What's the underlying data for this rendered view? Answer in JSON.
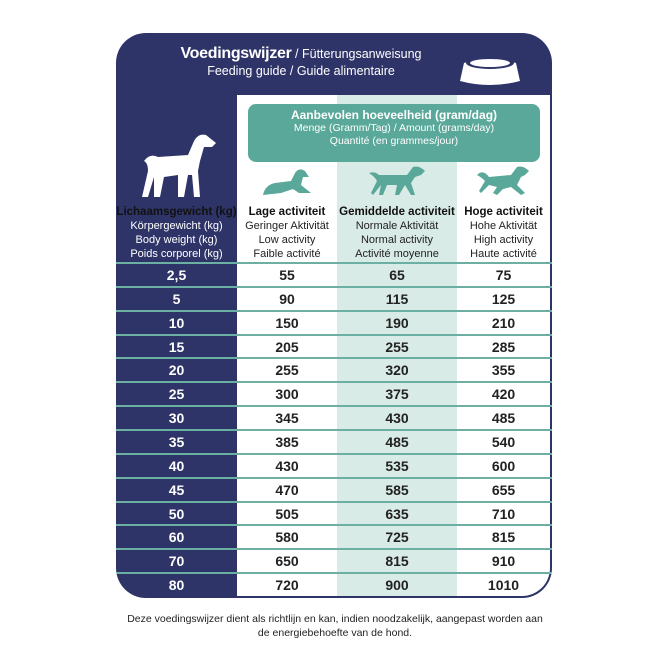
{
  "header": {
    "title_bold": "Voedingswijzer",
    "title_rest": " / Fütterungsanweisung",
    "subtitle": "Feeding guide / Guide alimentaire"
  },
  "amount": {
    "line1": "Aanbevolen hoeveelheid (gram/dag)",
    "line2": "Menge (Gramm/Tag) / Amount (grams/day)",
    "line3": "Quantité (en grammes/jour)"
  },
  "columns": [
    {
      "nl": "Lichaamsgewicht (kg)",
      "de": "Körpergewicht (kg)",
      "en": "Body weight (kg)",
      "fr": "Poids corporel (kg)"
    },
    {
      "nl": "Lage activiteit",
      "de": "Geringer Aktivität",
      "en": "Low activity",
      "fr": "Faible activité"
    },
    {
      "nl": "Gemiddelde activiteit",
      "de": "Normale Aktivität",
      "en": "Normal activity",
      "fr": "Activité moyenne"
    },
    {
      "nl": "Hoge activiteit",
      "de": "Hohe Aktivität",
      "en": "High activity",
      "fr": "Haute activité"
    }
  ],
  "rows": [
    [
      "2,5",
      "55",
      "65",
      "75"
    ],
    [
      "5",
      "90",
      "115",
      "125"
    ],
    [
      "10",
      "150",
      "190",
      "210"
    ],
    [
      "15",
      "205",
      "255",
      "285"
    ],
    [
      "20",
      "255",
      "320",
      "355"
    ],
    [
      "25",
      "300",
      "375",
      "420"
    ],
    [
      "30",
      "345",
      "430",
      "485"
    ],
    [
      "35",
      "385",
      "485",
      "540"
    ],
    [
      "40",
      "430",
      "535",
      "600"
    ],
    [
      "45",
      "470",
      "585",
      "655"
    ],
    [
      "50",
      "505",
      "635",
      "710"
    ],
    [
      "60",
      "580",
      "725",
      "815"
    ],
    [
      "70",
      "650",
      "815",
      "910"
    ],
    [
      "80",
      "720",
      "900",
      "1010"
    ]
  ],
  "footer": "Deze voedingswijzer dient als richtlijn en kan, indien noodzakelijk, aangepast worden aan de energiebehoefte van de hond.",
  "colors": {
    "navy": "#2e3468",
    "teal": "#5aa89a",
    "light_teal": "#d9ebe6"
  },
  "icons": [
    "food-bowl-icon",
    "dog-standing-icon",
    "dog-lying-icon",
    "dog-walking-icon",
    "dog-running-icon"
  ]
}
